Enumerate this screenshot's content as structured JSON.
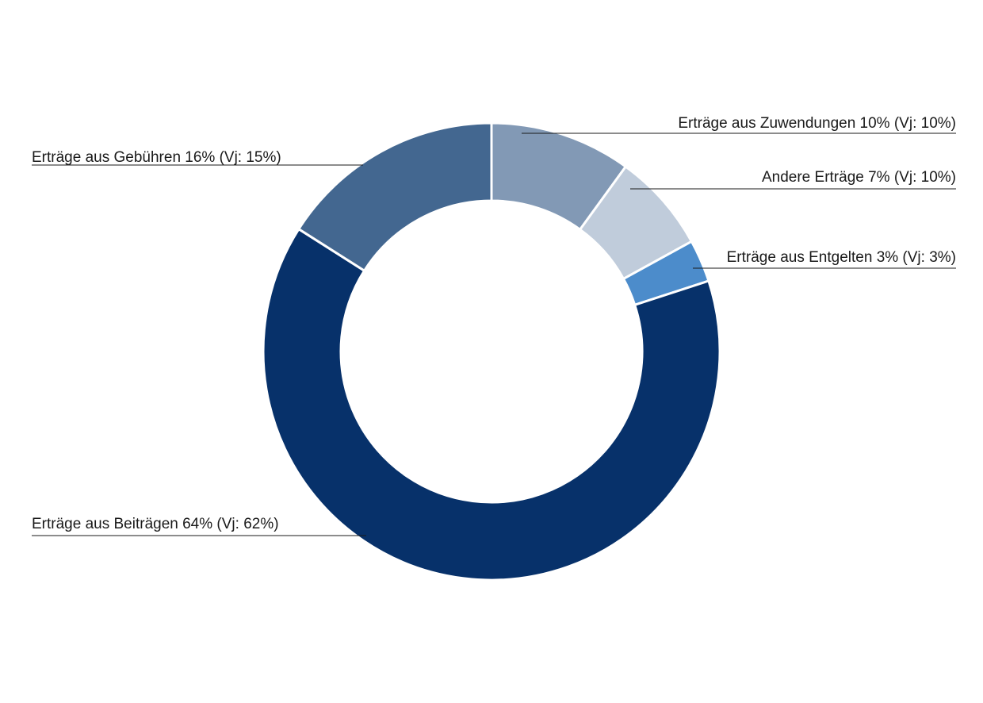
{
  "chart_data": {
    "type": "pie",
    "donut": true,
    "unit": "%",
    "slices": [
      {
        "label": "Erträge aus Zuwendungen 10% (Vj: 10%)",
        "value": 10,
        "previous_year": 10,
        "color": "#8299b5"
      },
      {
        "label": "Andere Erträge 7% (Vj: 10%)",
        "value": 7,
        "previous_year": 10,
        "color": "#c0ccdb"
      },
      {
        "label": "Erträge aus Entgelten 3% (Vj: 3%)",
        "value": 3,
        "previous_year": 3,
        "color": "#4c8ccb"
      },
      {
        "label": "Erträge aus Beiträgen 64% (Vj: 62%)",
        "value": 64,
        "previous_year": 62,
        "color": "#07316a"
      },
      {
        "label": "Erträge aus Gebühren 16% (Vj: 15%)",
        "value": 16,
        "previous_year": 15,
        "color": "#436790"
      }
    ],
    "start_angle_deg": 0,
    "direction": "clockwise",
    "legend": "leader-line labels"
  }
}
